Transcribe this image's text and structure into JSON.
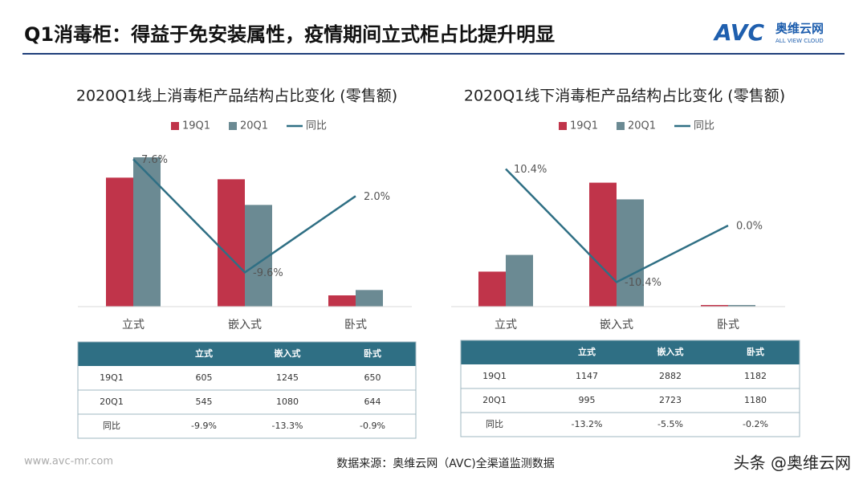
{
  "header": {
    "title": "Q1消毒柜：得益于免安装属性，疫情期间立式柜占比提升明显",
    "logo": "AVC",
    "logo_cn": "奥维云网",
    "logo_en": "ALL VIEW CLOUD"
  },
  "chart_data": [
    {
      "type": "bar-line",
      "title": "2020Q1线上消毒柜产品结构占比变化 (零售额)",
      "categories": [
        "立式",
        "嵌入式",
        "卧式"
      ],
      "series": [
        {
          "name": "19Q1",
          "color": "#c0344a",
          "values": [
            48.2,
            47.6,
            4.2
          ]
        },
        {
          "name": "20Q1",
          "color": "#6b8a93",
          "values": [
            55.8,
            38.0,
            6.2
          ]
        },
        {
          "name": "同比",
          "color": "#2f6f84",
          "axis": "y2",
          "values": [
            7.6,
            -9.6,
            2.0
          ],
          "value_labels": [
            "7.6%",
            "-9.6%",
            "2.0%"
          ]
        }
      ],
      "ylim": [
        0,
        60
      ],
      "y2lim": [
        -14.8,
        9.6
      ],
      "legend": "top"
    },
    {
      "type": "bar-line",
      "title": "2020Q1线下消毒柜产品结构占比变化 (零售额)",
      "categories": [
        "立式",
        "嵌入式",
        "卧式"
      ],
      "series": [
        {
          "name": "19Q1",
          "color": "#c0344a",
          "values": [
            21.8,
            77.2,
            1.0
          ]
        },
        {
          "name": "20Q1",
          "color": "#6b8a93",
          "values": [
            32.2,
            66.8,
            1.0
          ]
        },
        {
          "name": "同比",
          "color": "#2f6f84",
          "axis": "y2",
          "values": [
            10.4,
            -10.4,
            0.0
          ],
          "value_labels": [
            "10.4%",
            "-10.4%",
            "0.0%"
          ]
        }
      ],
      "ylim": [
        0,
        100
      ],
      "y2lim": [
        -14.9,
        14.6
      ],
      "legend": "top"
    }
  ],
  "tables": [
    {
      "columns": [
        "立式",
        "嵌入式",
        "卧式"
      ],
      "rows": [
        {
          "label": "19Q1",
          "cells": [
            605,
            1245,
            650
          ]
        },
        {
          "label": "20Q1",
          "cells": [
            545,
            1080,
            644
          ]
        },
        {
          "label": "同比",
          "cells": [
            "-9.9%",
            "-13.3%",
            "-0.9%"
          ]
        }
      ]
    },
    {
      "columns": [
        "立式",
        "嵌入式",
        "卧式"
      ],
      "rows": [
        {
          "label": "19Q1",
          "cells": [
            1147,
            2882,
            1182
          ]
        },
        {
          "label": "20Q1",
          "cells": [
            995,
            2723,
            1180
          ]
        },
        {
          "label": "同比",
          "cells": [
            "-13.2%",
            "-5.5%",
            "-0.2%"
          ]
        }
      ]
    }
  ],
  "footer": {
    "website": "www.avc-mr.com",
    "source": "数据来源：奥维云网（AVC)全渠道监测数据",
    "watermark": "头条 @奥维云网"
  }
}
